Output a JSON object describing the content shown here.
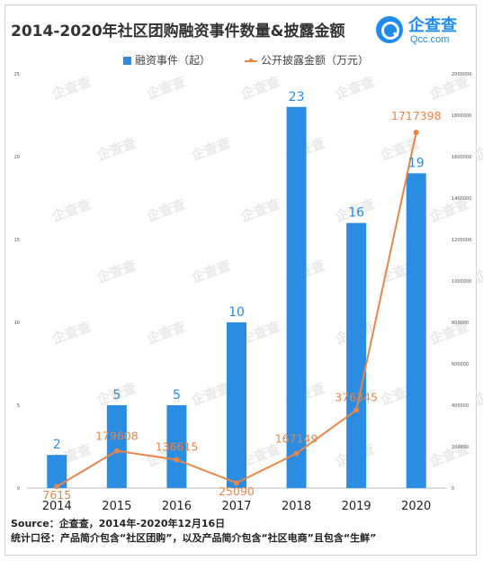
{
  "header": {
    "title": "2014-2020年社区团购融资事件数量&披露金额"
  },
  "logo": {
    "name": "企查查",
    "domain": "Qcc.com"
  },
  "watermark": "企查查",
  "colors": {
    "bar": "#2b8de2",
    "line": "#e8864a",
    "bar_label": "#2b8de2",
    "line_label": "#e8864a"
  },
  "chart_data": {
    "type": "bar",
    "categories": [
      "2014",
      "2015",
      "2016",
      "2017",
      "2018",
      "2019",
      "2020"
    ],
    "series": [
      {
        "name": "融资事件（起）",
        "type": "bar",
        "axis": "left",
        "values": [
          2,
          5,
          5,
          10,
          23,
          16,
          19
        ]
      },
      {
        "name": "公开披露金额（万元）",
        "type": "line",
        "axis": "right",
        "values": [
          7615,
          179608,
          136615,
          25090,
          167149,
          376345,
          1717398
        ]
      }
    ],
    "y_left": {
      "ylim": [
        0,
        25
      ],
      "ticks": [
        "0",
        "5",
        "10",
        "15",
        "20",
        "25"
      ]
    },
    "y_right": {
      "ylim": [
        0,
        2000000
      ],
      "ticks": [
        "0",
        "200000",
        "400000",
        "600000",
        "800000",
        "1000000",
        "1200000",
        "1400000",
        "1600000",
        "1800000",
        "2000000"
      ]
    },
    "grid": false,
    "legend": "top-center"
  },
  "footer": {
    "source": "Source：企查查，2014年-2020年12月16日",
    "note": "统计口径：产品简介包含“社区团购”，以及产品简介包含“社区电商”且包含“生鲜”"
  }
}
